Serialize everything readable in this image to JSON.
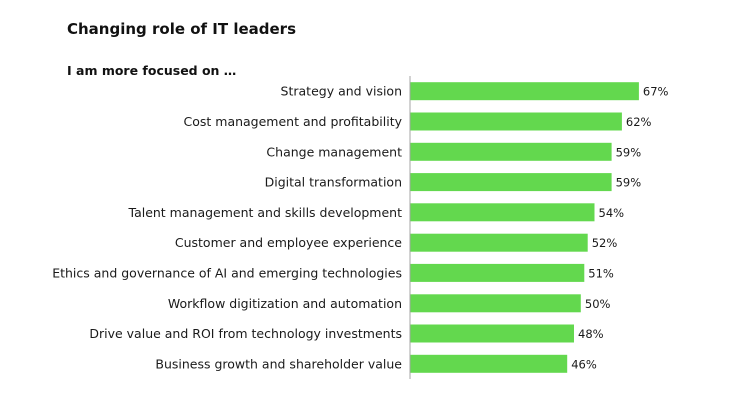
{
  "header": {
    "title": "Changing role of IT leaders",
    "subtitle": "I am more focused on …"
  },
  "colors": {
    "bar": "#63d84e",
    "axis": "#a6a6a6"
  },
  "chart_data": {
    "type": "bar",
    "orientation": "horizontal",
    "title": "Changing role of IT leaders",
    "subtitle": "I am more focused on …",
    "categories": [
      "Strategy and vision",
      "Cost management and profitability",
      "Change management",
      "Digital transformation",
      "Talent management and skills development",
      "Customer and employee experience",
      "Ethics and governance of AI and emerging technologies",
      "Workflow digitization and automation",
      "Drive value and ROI from technology investments",
      "Business growth and shareholder value"
    ],
    "values": [
      67,
      62,
      59,
      59,
      54,
      52,
      51,
      50,
      48,
      46
    ],
    "value_labels": [
      "67%",
      "62%",
      "59%",
      "59%",
      "54%",
      "52%",
      "51%",
      "50%",
      "48%",
      "46%"
    ],
    "unit": "%",
    "xlim": [
      0,
      100
    ],
    "grid": false,
    "legend": "none"
  }
}
